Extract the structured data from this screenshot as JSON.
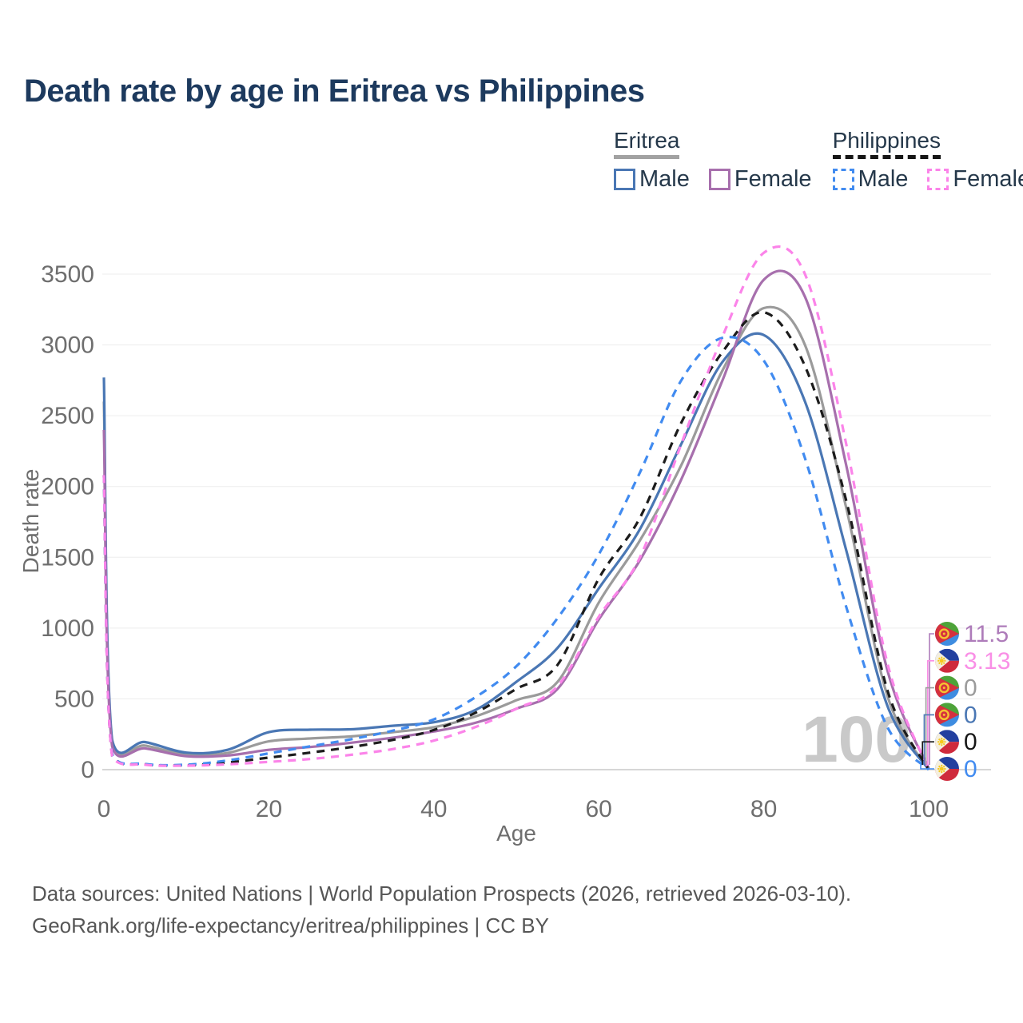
{
  "title": "Death rate by age in Eritrea vs Philippines",
  "legend": {
    "groups": [
      {
        "label": "Eritrea",
        "underline": "solid",
        "underline_color": "#a2a2a2",
        "items": [
          {
            "label": "Male",
            "color": "#4a77b4",
            "line": "solid"
          },
          {
            "label": "Female",
            "color": "#a76fad",
            "line": "solid"
          }
        ]
      },
      {
        "label": "Philippines",
        "underline": "dashed",
        "underline_color": "#161616",
        "items": [
          {
            "label": "Male",
            "color": "#418bf0",
            "line": "dashed"
          },
          {
            "label": "Female",
            "color": "#fb84e9",
            "line": "dashed"
          }
        ]
      }
    ]
  },
  "chart_data": {
    "type": "line",
    "title": "Death rate by age in Eritrea vs Philippines",
    "xlabel": "Age",
    "ylabel": "Death rate",
    "xlim": [
      0,
      100
    ],
    "ylim": [
      0,
      3500
    ],
    "xticks": [
      0,
      20,
      40,
      60,
      80,
      100
    ],
    "yticks": [
      0,
      500,
      1000,
      1500,
      2000,
      2500,
      3000,
      3500
    ],
    "grid": "horizontal",
    "legend_position": "top-right",
    "watermark": "100",
    "x": [
      0,
      1,
      5,
      10,
      15,
      20,
      25,
      30,
      35,
      40,
      45,
      50,
      55,
      60,
      65,
      70,
      75,
      80,
      85,
      90,
      95,
      100
    ],
    "series": [
      {
        "name": "Eritrea",
        "country": "Eritrea",
        "sex": "both",
        "color": "#9b9b9b",
        "dash": "solid",
        "values": [
          2600,
          185,
          170,
          105,
          118,
          200,
          220,
          235,
          265,
          300,
          375,
          490,
          620,
          1180,
          1620,
          2150,
          2820,
          3260,
          3000,
          1850,
          520,
          0
        ]
      },
      {
        "name": "Eritrea Male",
        "country": "Eritrea",
        "sex": "male",
        "color": "#4a77b4",
        "dash": "solid",
        "values": [
          2770,
          210,
          195,
          120,
          140,
          265,
          282,
          285,
          310,
          335,
          420,
          620,
          860,
          1280,
          1700,
          2300,
          2880,
          3070,
          2600,
          1550,
          450,
          0
        ]
      },
      {
        "name": "Eritrea Female",
        "country": "Eritrea",
        "sex": "female",
        "color": "#a76fad",
        "dash": "solid",
        "values": [
          2400,
          165,
          150,
          95,
          100,
          140,
          160,
          190,
          225,
          270,
          330,
          430,
          570,
          1060,
          1480,
          2050,
          2750,
          3460,
          3340,
          2150,
          700,
          11.5
        ]
      },
      {
        "name": "Philippines",
        "country": "Philippines",
        "sex": "both",
        "color": "#1c1c1c",
        "dash": "dashed",
        "values": [
          2080,
          102,
          38,
          31,
          50,
          85,
          120,
          160,
          210,
          280,
          400,
          570,
          740,
          1350,
          1780,
          2450,
          2950,
          3230,
          2850,
          1900,
          560,
          0
        ]
      },
      {
        "name": "Philippines Male",
        "country": "Philippines",
        "sex": "male",
        "color": "#418bf0",
        "dash": "dashed",
        "values": [
          2080,
          110,
          40,
          35,
          65,
          115,
          165,
          215,
          275,
          355,
          510,
          730,
          1070,
          1520,
          2100,
          2750,
          3050,
          2890,
          2200,
          1150,
          300,
          0
        ]
      },
      {
        "name": "Philippines Female",
        "country": "Philippines",
        "sex": "female",
        "color": "#fb84e9",
        "dash": "dashed",
        "values": [
          2080,
          95,
          35,
          28,
          38,
          55,
          75,
          105,
          145,
          205,
          300,
          430,
          590,
          1080,
          1500,
          2300,
          3060,
          3650,
          3500,
          2300,
          750,
          3.13
        ]
      }
    ]
  },
  "end_labels": [
    {
      "series": "Eritrea Female",
      "flag": "eritrea",
      "value": "11.5",
      "color": "#ae7cba"
    },
    {
      "series": "Philippines Female",
      "flag": "philippines",
      "value": "3.13",
      "color": "#f98fe6"
    },
    {
      "series": "Eritrea",
      "flag": "eritrea",
      "value": "0",
      "color": "#9b9b9b"
    },
    {
      "series": "Eritrea Male",
      "flag": "eritrea",
      "value": "0",
      "color": "#4a77b4"
    },
    {
      "series": "Philippines",
      "flag": "philippines",
      "value": "0",
      "color": "#161616"
    },
    {
      "series": "Philippines Male",
      "flag": "philippines",
      "value": "0",
      "color": "#418bf0"
    }
  ],
  "footer": {
    "line1": "Data sources: United Nations | World Population Prospects (2026, retrieved 2026-03-10).",
    "line2": "GeoRank.org/life-expectancy/eritrea/philippines | CC BY"
  }
}
